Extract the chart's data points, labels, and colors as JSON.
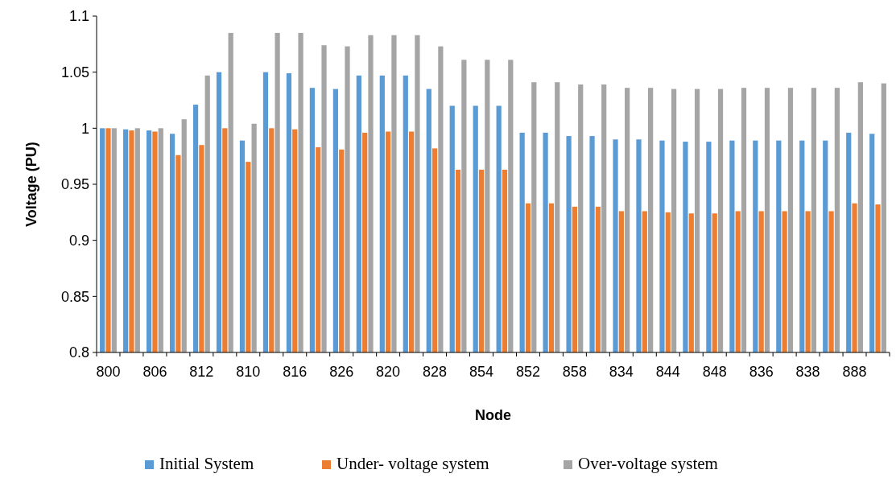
{
  "chart_data": {
    "type": "bar",
    "xlabel": "Node",
    "ylabel": "Voltage (PU)",
    "categories": [
      "800",
      null,
      "806",
      null,
      "812",
      null,
      "810",
      null,
      "816",
      null,
      "826",
      null,
      "820",
      null,
      "828",
      null,
      "854",
      null,
      "852",
      null,
      "858",
      null,
      "834",
      null,
      "844",
      null,
      "848",
      null,
      "836",
      null,
      "838",
      null,
      "888",
      null
    ],
    "series": [
      {
        "name": "Initial System",
        "color": "#5b9bd5",
        "values": [
          1.0,
          0.999,
          0.998,
          0.995,
          1.021,
          1.05,
          0.989,
          1.05,
          1.049,
          1.036,
          1.035,
          1.047,
          1.047,
          1.047,
          1.035,
          1.02,
          1.02,
          1.02,
          0.996,
          0.996,
          0.993,
          0.993,
          0.99,
          0.99,
          0.989,
          0.988,
          0.988,
          0.989,
          0.989,
          0.989,
          0.989,
          0.989,
          0.996,
          0.995
        ]
      },
      {
        "name": "Under- voltage system",
        "color": "#ed7d31",
        "values": [
          1.0,
          0.998,
          0.997,
          0.976,
          0.985,
          1.0,
          0.97,
          1.0,
          0.999,
          0.983,
          0.981,
          0.996,
          0.997,
          0.997,
          0.982,
          0.963,
          0.963,
          0.963,
          0.933,
          0.933,
          0.93,
          0.93,
          0.926,
          0.926,
          0.925,
          0.924,
          0.924,
          0.926,
          0.926,
          0.926,
          0.926,
          0.926,
          0.933,
          0.932
        ]
      },
      {
        "name": "Over-voltage system",
        "color": "#a5a5a5",
        "values": [
          1.0,
          1.0,
          1.0,
          1.008,
          1.047,
          1.085,
          1.004,
          1.085,
          1.085,
          1.074,
          1.073,
          1.083,
          1.083,
          1.083,
          1.073,
          1.061,
          1.061,
          1.061,
          1.041,
          1.041,
          1.039,
          1.039,
          1.036,
          1.036,
          1.035,
          1.035,
          1.035,
          1.036,
          1.036,
          1.036,
          1.036,
          1.036,
          1.041,
          1.04
        ]
      }
    ],
    "ylim": [
      0.8,
      1.1
    ],
    "yticks": [
      0.8,
      0.85,
      0.9,
      0.95,
      1,
      1.05,
      1.1
    ],
    "legend": "bottom"
  }
}
